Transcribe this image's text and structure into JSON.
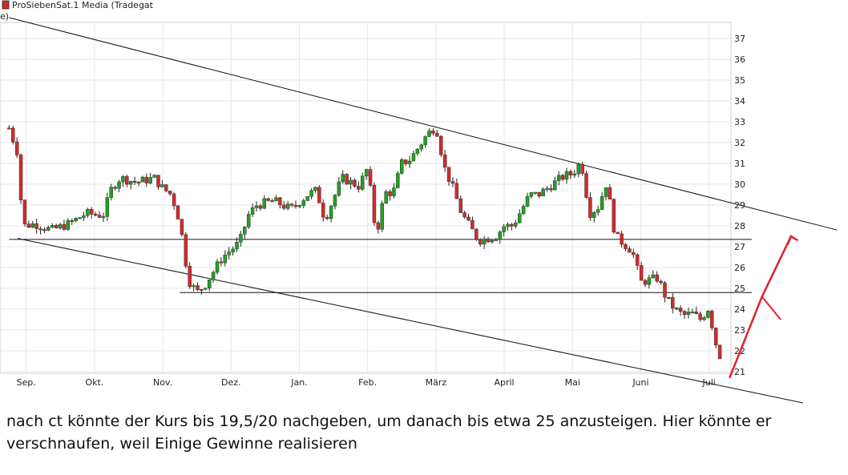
{
  "chart_data": {
    "type": "candlestick",
    "legend": {
      "label": "ProSiebenSat.1 Media (Tradegat",
      "swatch_color": "#d42a2a",
      "placement": "top-left"
    },
    "axis_fragment": "e)",
    "y_axis": {
      "position": "right",
      "ylim": [
        20,
        37.5
      ],
      "ticks": [
        21,
        22,
        23,
        24,
        25,
        26,
        27,
        28,
        29,
        30,
        31,
        32,
        33,
        34,
        35,
        36,
        37
      ]
    },
    "x_axis": {
      "labels": [
        "Sep.",
        "Okt.",
        "Nov.",
        "Dez.",
        "Jan.",
        "Feb.",
        "März",
        "April",
        "Mai",
        "Juni",
        "Juli"
      ],
      "positions": [
        0.5,
        4.5,
        8.5,
        12.5,
        16.5,
        20.5,
        24.5,
        28.5,
        32.5,
        36.5,
        40.5
      ]
    },
    "grid": true,
    "colors": {
      "up": "#22a022",
      "down": "#d42a2a",
      "wick": "#222222",
      "grid": "#e6e6e6",
      "projection": "#e0202a"
    },
    "price_path": [
      [
        -0.5,
        32.7
      ],
      [
        0,
        31.5
      ],
      [
        0.3,
        28
      ],
      [
        1,
        28.1
      ],
      [
        2,
        27.8
      ],
      [
        3,
        28.1
      ],
      [
        4,
        28.6
      ],
      [
        5,
        28.5
      ],
      [
        5.5,
        29.8
      ],
      [
        6,
        30.3
      ],
      [
        7,
        30.1
      ],
      [
        8,
        30.3
      ],
      [
        8.5,
        29.8
      ],
      [
        9,
        29.5
      ],
      [
        9.5,
        28.2
      ],
      [
        10,
        25.4
      ],
      [
        10.5,
        24.8
      ],
      [
        11,
        25.2
      ],
      [
        12,
        26.5
      ],
      [
        13,
        27.2
      ],
      [
        13.5,
        28.5
      ],
      [
        14,
        29
      ],
      [
        15,
        29.2
      ],
      [
        16,
        28.8
      ],
      [
        17,
        29.5
      ],
      [
        17.5,
        29.7
      ],
      [
        18,
        28.3
      ],
      [
        19,
        30.3
      ],
      [
        20,
        29.9
      ],
      [
        20.5,
        30.8
      ],
      [
        21,
        27.5
      ],
      [
        21.5,
        29.6
      ],
      [
        22,
        29.6
      ],
      [
        22.5,
        31
      ],
      [
        23,
        31.2
      ],
      [
        24,
        32.4
      ],
      [
        24.5,
        32.8
      ],
      [
        25,
        30.8
      ],
      [
        25.5,
        29.8
      ],
      [
        26,
        28.6
      ],
      [
        27,
        27.3
      ],
      [
        28,
        27.5
      ],
      [
        28.5,
        28
      ],
      [
        29,
        28
      ],
      [
        30,
        29.5
      ],
      [
        30.5,
        29.5
      ],
      [
        31,
        29.8
      ],
      [
        32,
        30.4
      ],
      [
        32.5,
        30.5
      ],
      [
        33,
        31.1
      ],
      [
        33.5,
        28.6
      ],
      [
        34,
        28.9
      ],
      [
        34.5,
        30.1
      ],
      [
        35,
        27.5
      ],
      [
        36,
        26.8
      ],
      [
        36.5,
        25.3
      ],
      [
        37,
        25.4
      ],
      [
        37.5,
        25.5
      ],
      [
        38,
        24.5
      ],
      [
        38.5,
        24
      ],
      [
        39,
        23.7
      ],
      [
        39.5,
        23.8
      ],
      [
        40,
        23.5
      ],
      [
        40.5,
        24.1
      ],
      [
        40.8,
        22.6
      ],
      [
        41.2,
        21.6
      ]
    ],
    "trendlines": [
      {
        "name": "upper-channel",
        "from": [
          -0.5,
          38
        ],
        "to": [
          48,
          27.8
        ]
      },
      {
        "name": "lower-channel",
        "from": [
          0,
          27.4
        ],
        "to": [
          46,
          19.5
        ]
      },
      {
        "name": "resistance-27.3",
        "from": [
          -0.5,
          27.35
        ],
        "to": [
          43,
          27.35
        ]
      },
      {
        "name": "resistance-24.8",
        "from": [
          9.5,
          24.8
        ],
        "to": [
          43,
          24.8
        ]
      }
    ],
    "projection": {
      "main": [
        [
          41.7,
          20.7
        ],
        [
          43.6,
          24.6
        ],
        [
          45.3,
          27.5
        ]
      ],
      "arrowhead": [
        [
          45.1,
          27.1
        ],
        [
          45.3,
          27.5
        ],
        [
          45.7,
          27.3
        ]
      ],
      "branch": [
        [
          43.6,
          24.6
        ],
        [
          44.7,
          23.5
        ]
      ]
    }
  },
  "caption": "nach ct könnte der Kurs bis 19,5/20 nachgeben, um danach bis etwa 25 anzusteigen. Hier könnte er verschnaufen, weil Einige Gewinne realisieren"
}
